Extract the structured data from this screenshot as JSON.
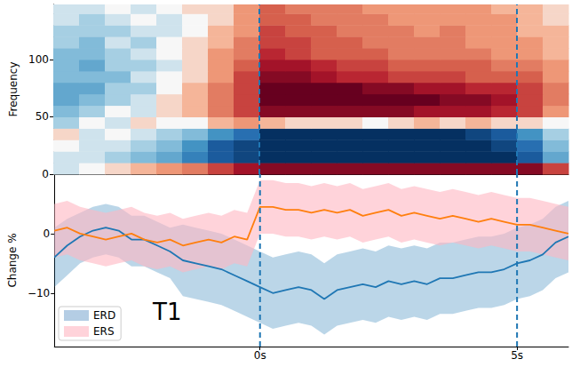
{
  "chart_data": [
    {
      "type": "heatmap",
      "ylabel": "Frequency",
      "x_edges": [
        -4,
        -3.5,
        -3,
        -2.5,
        -2,
        -1.5,
        -1,
        -0.5,
        0,
        0.5,
        1,
        1.5,
        2,
        2.5,
        3,
        3.5,
        4,
        4.5,
        5,
        5.5,
        6
      ],
      "y_edges": [
        0,
        10,
        20,
        30,
        40,
        50,
        60,
        70,
        80,
        90,
        100,
        110,
        120,
        130,
        140,
        148
      ],
      "cells": [
        [
          -0.1,
          0,
          0.1,
          0.2,
          0.3,
          0.4,
          0.6,
          0.8,
          0.9,
          0.9,
          0.9,
          0.9,
          0.9,
          0.9,
          0.9,
          0.9,
          0.9,
          0.9,
          0.9,
          0.6
        ],
        [
          -0.1,
          -0.1,
          -0.2,
          -0.3,
          -0.4,
          -0.6,
          -0.8,
          -0.9,
          -1,
          -1,
          -1,
          -1,
          -1,
          -1,
          -1,
          -1,
          -1,
          -1,
          -0.8,
          -0.4
        ],
        [
          0,
          -0.1,
          -0.1,
          -0.2,
          -0.3,
          -0.5,
          -0.8,
          -0.9,
          -1,
          -1,
          -1,
          -1,
          -1,
          -1,
          -1,
          -1,
          -1,
          -0.9,
          -0.7,
          -0.3
        ],
        [
          0.1,
          -0.1,
          0,
          -0.1,
          -0.2,
          -0.3,
          -0.5,
          -0.7,
          -1,
          -1,
          -1,
          -1,
          -1,
          -1,
          -1,
          -1,
          -0.9,
          -0.8,
          -0.5,
          -0.2
        ],
        [
          -0.2,
          0,
          -0.1,
          0.1,
          0,
          0,
          0.2,
          0.3,
          0.2,
          0.1,
          0.1,
          0.1,
          0,
          0.1,
          0.2,
          0.1,
          0.2,
          0.1,
          0.1,
          0
        ],
        [
          -0.3,
          -0.2,
          0,
          -0.1,
          0.1,
          0.2,
          0.4,
          0.6,
          0.9,
          0.9,
          0.9,
          0.9,
          0.9,
          0.9,
          0.8,
          0.8,
          0.8,
          0.7,
          0.6,
          0.3
        ],
        [
          -0.4,
          -0.3,
          -0.2,
          -0.1,
          0.1,
          0.2,
          0.4,
          0.6,
          1,
          1,
          1,
          1,
          1,
          1,
          1,
          0.9,
          0.9,
          0.8,
          0.6,
          0.4
        ],
        [
          -0.4,
          -0.4,
          -0.2,
          -0.2,
          0,
          0.2,
          0.4,
          0.6,
          1,
          1,
          1,
          1,
          0.9,
          0.9,
          0.8,
          0.8,
          0.7,
          0.7,
          0.6,
          0.4
        ],
        [
          -0.3,
          -0.3,
          -0.3,
          -0.1,
          0,
          0.1,
          0.3,
          0.6,
          0.9,
          0.9,
          0.8,
          0.7,
          0.7,
          0.6,
          0.6,
          0.6,
          0.5,
          0.5,
          0.5,
          0.3
        ],
        [
          -0.3,
          -0.4,
          -0.2,
          -0.2,
          -0.1,
          0.1,
          0.3,
          0.5,
          0.8,
          0.8,
          0.7,
          0.6,
          0.6,
          0.5,
          0.5,
          0.5,
          0.5,
          0.4,
          0.4,
          0.3
        ],
        [
          -0.3,
          -0.3,
          -0.2,
          -0.1,
          0,
          0.1,
          0.3,
          0.4,
          0.7,
          0.6,
          0.5,
          0.5,
          0.5,
          0.4,
          0.4,
          0.4,
          0.4,
          0.3,
          0.3,
          0.2
        ],
        [
          -0.2,
          -0.3,
          -0.1,
          -0.2,
          0,
          0.1,
          0.2,
          0.4,
          0.6,
          0.6,
          0.5,
          0.5,
          0.4,
          0.4,
          0.4,
          0.4,
          0.3,
          0.3,
          0.3,
          0.2
        ],
        [
          -0.2,
          -0.2,
          -0.2,
          -0.1,
          -0.1,
          0,
          0.2,
          0.3,
          0.6,
          0.5,
          0.5,
          0.4,
          0.4,
          0.4,
          0.3,
          0.4,
          0.3,
          0.3,
          0.2,
          0.2
        ],
        [
          -0.1,
          -0.2,
          -0.1,
          0,
          -0.1,
          0,
          0.1,
          0.3,
          0.5,
          0.5,
          0.4,
          0.4,
          0.4,
          0.3,
          0.3,
          0.3,
          0.3,
          0.3,
          0.2,
          0.1
        ],
        [
          -0.1,
          -0.1,
          0,
          -0.1,
          0,
          0.1,
          0.1,
          0.3,
          0.5,
          0.4,
          0.4,
          0.4,
          0.3,
          0.3,
          0.3,
          0.3,
          0.3,
          0.2,
          0.2,
          0.1
        ]
      ],
      "zlim": [
        -1,
        1
      ],
      "xlim": [
        -4,
        6
      ],
      "ylim": [
        0,
        148
      ],
      "yticks": [
        0,
        50,
        100
      ],
      "tick_labels": "y",
      "grid": false
    },
    {
      "type": "line",
      "ylabel": "Change %",
      "annotation": "T1",
      "x": [
        -4,
        -3.75,
        -3.5,
        -3.25,
        -3,
        -2.75,
        -2.5,
        -2.25,
        -2,
        -1.75,
        -1.5,
        -1.25,
        -1,
        -0.75,
        -0.5,
        -0.25,
        0,
        0.25,
        0.5,
        0.75,
        1,
        1.25,
        1.5,
        1.75,
        2,
        2.25,
        2.5,
        2.75,
        3,
        3.25,
        3.5,
        3.75,
        4,
        4.25,
        4.5,
        4.75,
        5,
        5.25,
        5.5,
        5.75,
        6
      ],
      "series": [
        {
          "name": "ERD",
          "color": "#1f77b4",
          "values": [
            -4,
            -2,
            -0.5,
            0.5,
            1,
            0.5,
            -1,
            -1,
            -2,
            -3,
            -4.5,
            -5,
            -5.5,
            -6,
            -7,
            -8,
            -9,
            -10,
            -9.5,
            -9,
            -9.5,
            -11,
            -9.5,
            -9,
            -8.5,
            -9,
            -8,
            -8.5,
            -8,
            -8.5,
            -7.5,
            -7.5,
            -7,
            -6.5,
            -6.5,
            -6,
            -5,
            -4.5,
            -3.5,
            -1.5,
            -0.5
          ],
          "lower": [
            -9,
            -7,
            -5,
            -4,
            -3.5,
            -4,
            -5.5,
            -5.5,
            -6.5,
            -7.5,
            -10.5,
            -11,
            -11.5,
            -12,
            -13,
            -14,
            -15,
            -16,
            -15.5,
            -15,
            -15.5,
            -17,
            -15.5,
            -15,
            -14.5,
            -15,
            -14,
            -14.5,
            -14,
            -14.5,
            -13.5,
            -13.5,
            -13,
            -12.5,
            -12.5,
            -12,
            -11,
            -10.5,
            -9.5,
            -7.5,
            -6.5
          ],
          "upper": [
            1,
            2.5,
            3.5,
            4.5,
            5,
            4.5,
            3,
            3,
            2,
            1,
            1.5,
            1,
            0.5,
            0,
            -1,
            -2,
            -3,
            -4,
            -3.5,
            -3,
            -3.5,
            -5,
            -3.5,
            -3,
            -2.5,
            -3,
            -2,
            -2.5,
            -2,
            -2.5,
            -1.5,
            -1.5,
            -1,
            -0.5,
            -0.5,
            0,
            1,
            1.5,
            2.5,
            4.5,
            5.5
          ]
        },
        {
          "name": "ERS",
          "color": "#ff7f0e",
          "values": [
            0.5,
            1,
            0,
            -0.5,
            -1,
            -0.5,
            0,
            -1,
            -1.5,
            -1,
            -2,
            -1.5,
            -1,
            -1.5,
            -0.5,
            -1,
            4.5,
            4.5,
            4,
            4,
            3.5,
            4,
            3.5,
            4,
            3,
            3.5,
            4,
            3,
            3.5,
            3,
            2.5,
            3,
            2.5,
            2,
            2.5,
            2,
            1.5,
            1.5,
            1,
            0.5,
            0
          ],
          "lower": [
            -4,
            -3.5,
            -4.5,
            -5,
            -5.5,
            -5,
            -4.5,
            -5.5,
            -6,
            -5.5,
            -6.5,
            -6,
            -5.5,
            -6,
            -5,
            -5.5,
            0,
            0,
            -0.5,
            -0.5,
            -1,
            -0.5,
            -1,
            -0.5,
            -1.5,
            -1,
            -0.5,
            -1.5,
            -1,
            -1.5,
            -2,
            -1.5,
            -2,
            -2.5,
            -2,
            -2.5,
            -3,
            -3,
            -3.5,
            -4,
            -4.5
          ],
          "upper": [
            5,
            5.5,
            4.5,
            4,
            3.5,
            4,
            4.5,
            3.5,
            3,
            3.5,
            2.5,
            3,
            3.5,
            3,
            4,
            3.5,
            9,
            9,
            8.5,
            8.5,
            8,
            8.5,
            8,
            8.5,
            7.5,
            8,
            8.5,
            7.5,
            8,
            7.5,
            7,
            7.5,
            7,
            6.5,
            7,
            6.5,
            6,
            6,
            5.5,
            5,
            4.5
          ]
        }
      ],
      "xlim": [
        -4,
        6
      ],
      "ylim": [
        -19,
        10
      ],
      "xticks": [
        {
          "value": 0,
          "label": "0s"
        },
        {
          "value": 5,
          "label": "5s"
        }
      ],
      "yticks": [
        {
          "value": -10,
          "label": "−10"
        },
        0
      ],
      "vlines": [
        0,
        5
      ],
      "legend": "lower left",
      "grid": false
    }
  ]
}
